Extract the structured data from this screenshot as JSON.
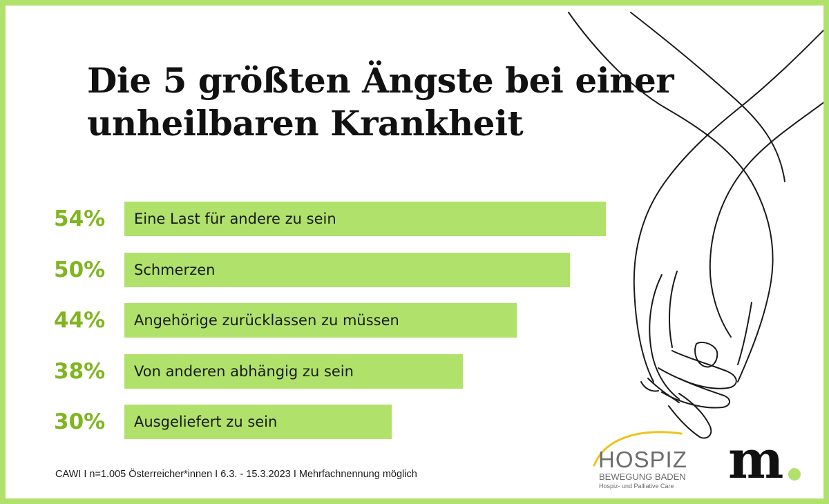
{
  "chart_data": {
    "type": "bar",
    "orientation": "horizontal",
    "title_lines": [
      "Die 5 größten Ängste bei einer",
      "unheilbaren Krankheit"
    ],
    "categories": [
      "Eine Last für andere zu sein",
      "Schmerzen",
      "Angehörige zurücklassen zu müssen",
      "Von anderen abhängig zu sein",
      "Ausgeliefert zu sein"
    ],
    "values": [
      54,
      50,
      44,
      38,
      30
    ],
    "value_labels": [
      "54%",
      "50%",
      "44%",
      "38%",
      "30%"
    ],
    "unit": "%",
    "xlim": [
      0,
      100
    ],
    "grid": false,
    "legend": "none",
    "footnote": "CAWI I n=1.005 Österreicher*innen I 6.3. - 15.3.2023 I Mehrfachnennung möglich"
  },
  "colors": {
    "border": "#b0e26b",
    "bar_fill": "#b0e26b",
    "percent_text": "#7fb51f",
    "title_text": "#111111",
    "logo_arc": "#f0c21a",
    "logo_dot": "#b0e26b"
  },
  "logos": {
    "hospiz": {
      "name": "HOSPIZ",
      "line2": "BEWEGUNG BADEN",
      "line3": "Hospiz- und Palliative Care"
    },
    "brand": "m"
  },
  "illustration": "holding-hands-line-art"
}
